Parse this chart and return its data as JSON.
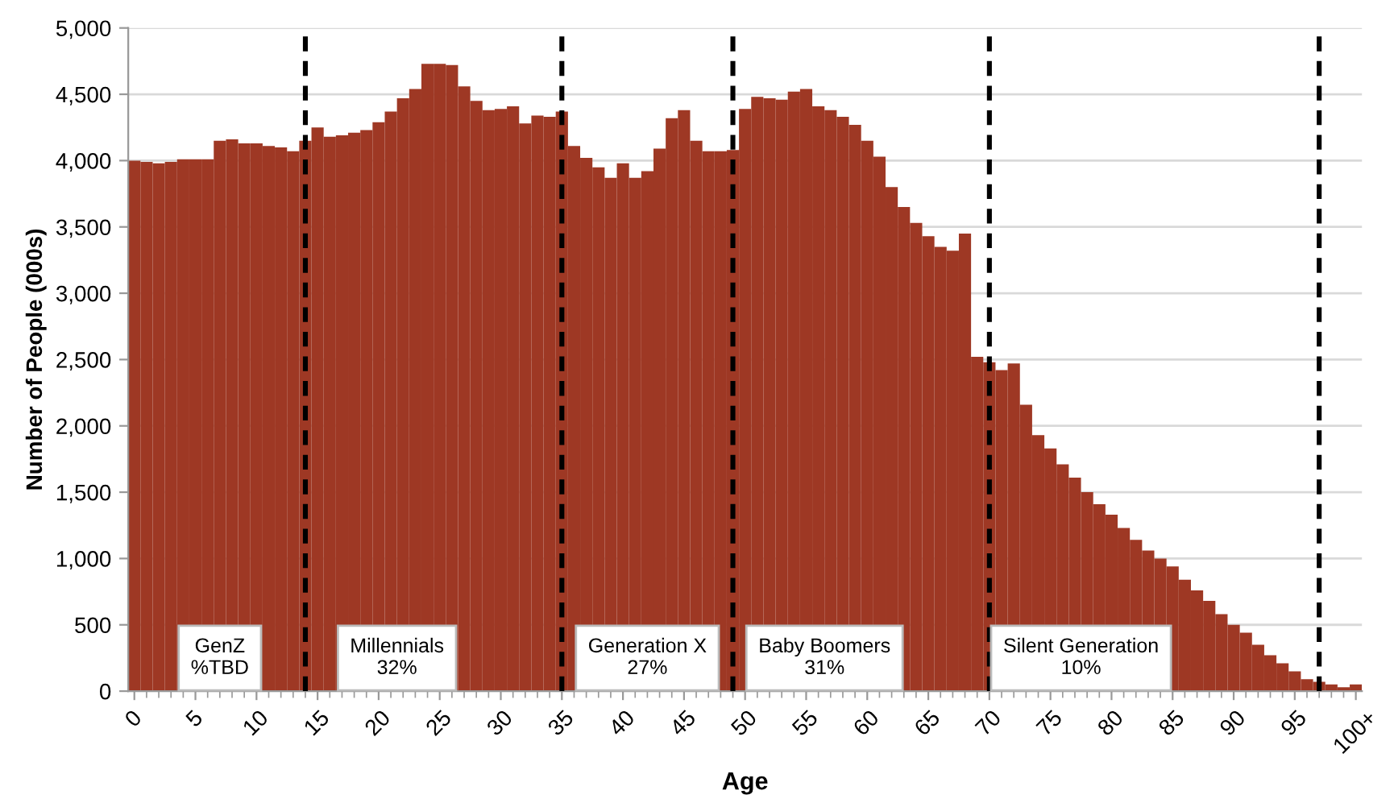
{
  "chart_data": {
    "type": "bar",
    "xlabel": "Age",
    "ylabel": "Number of People (000s)",
    "x": [
      0,
      1,
      2,
      3,
      4,
      5,
      6,
      7,
      8,
      9,
      10,
      11,
      12,
      13,
      14,
      15,
      16,
      17,
      18,
      19,
      20,
      21,
      22,
      23,
      24,
      25,
      26,
      27,
      28,
      29,
      30,
      31,
      32,
      33,
      34,
      35,
      36,
      37,
      38,
      39,
      40,
      41,
      42,
      43,
      44,
      45,
      46,
      47,
      48,
      49,
      50,
      51,
      52,
      53,
      54,
      55,
      56,
      57,
      58,
      59,
      60,
      61,
      62,
      63,
      64,
      65,
      66,
      67,
      68,
      69,
      70,
      71,
      72,
      73,
      74,
      75,
      76,
      77,
      78,
      79,
      80,
      81,
      82,
      83,
      84,
      85,
      86,
      87,
      88,
      89,
      90,
      91,
      92,
      93,
      94,
      95,
      96,
      97,
      98,
      99,
      100
    ],
    "values": [
      4000,
      3990,
      3980,
      3990,
      4010,
      4010,
      4010,
      4150,
      4160,
      4130,
      4130,
      4110,
      4100,
      4070,
      4150,
      4250,
      4180,
      4190,
      4210,
      4230,
      4290,
      4370,
      4470,
      4540,
      4730,
      4730,
      4720,
      4560,
      4450,
      4380,
      4390,
      4410,
      4280,
      4340,
      4330,
      4370,
      4110,
      4020,
      3950,
      3870,
      3980,
      3870,
      3920,
      4090,
      4320,
      4380,
      4150,
      4070,
      4070,
      4080,
      4390,
      4480,
      4470,
      4460,
      4520,
      4540,
      4410,
      4380,
      4330,
      4270,
      4150,
      4030,
      3800,
      3650,
      3530,
      3430,
      3350,
      3320,
      3450,
      2520,
      2480,
      2420,
      2470,
      2160,
      1930,
      1830,
      1710,
      1610,
      1500,
      1410,
      1330,
      1230,
      1140,
      1060,
      1000,
      940,
      840,
      760,
      680,
      580,
      500,
      440,
      350,
      270,
      210,
      150,
      90,
      70,
      50,
      30,
      50
    ],
    "color": "#9e3824",
    "xlim": [
      -0.5,
      100.5
    ],
    "xticks": [
      0,
      5,
      10,
      15,
      20,
      25,
      30,
      35,
      40,
      45,
      50,
      55,
      60,
      65,
      70,
      75,
      80,
      85,
      90,
      95,
      {
        "value": 100,
        "label": "100+"
      }
    ],
    "ylim": [
      0,
      5000
    ],
    "yticks": [
      {
        "value": 0,
        "label": "0"
      },
      {
        "value": 500,
        "label": "500"
      },
      {
        "value": 1000,
        "label": "1,000"
      },
      {
        "value": 1500,
        "label": "1,500"
      },
      {
        "value": 2000,
        "label": "2,000"
      },
      {
        "value": 2500,
        "label": "2,500"
      },
      {
        "value": 3000,
        "label": "3,000"
      },
      {
        "value": 3500,
        "label": "3,500"
      },
      {
        "value": 4000,
        "label": "4,000"
      },
      {
        "value": 4500,
        "label": "4,500"
      },
      {
        "value": 5000,
        "label": "5,000"
      }
    ],
    "grid": "y",
    "ref_lines": [
      {
        "axis": "x",
        "value": 14,
        "color": "#000000",
        "line_style": "dashed"
      },
      {
        "axis": "x",
        "value": 35,
        "color": "#000000",
        "line_style": "dashed"
      },
      {
        "axis": "x",
        "value": 49,
        "color": "#000000",
        "line_style": "dashed"
      },
      {
        "axis": "x",
        "value": 70,
        "color": "#000000",
        "line_style": "dashed"
      },
      {
        "axis": "x",
        "value": 97,
        "color": "#000000",
        "line_style": "dashed"
      }
    ],
    "annotations": [
      "GenZ\n%TBD",
      "Millennials\n32%",
      "Generation X\n27%",
      "Baby Boomers\n31%",
      "Silent Generation\n10%"
    ]
  }
}
